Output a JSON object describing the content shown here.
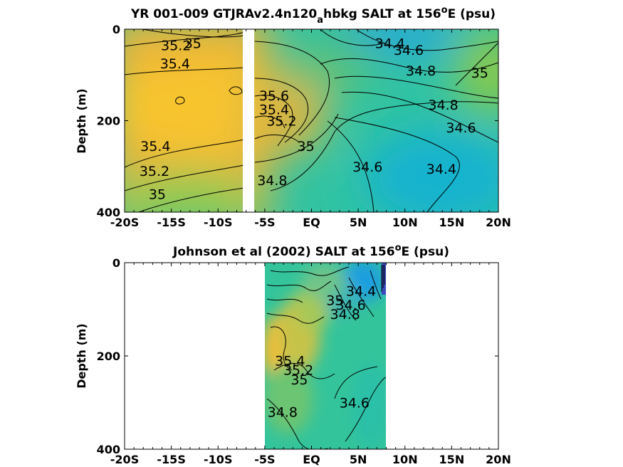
{
  "chart_data": [
    {
      "type": "contour",
      "title": "YR 001-009 GTJRAv2.4n120",
      "title_subscript": "a",
      "title_rest": "hbkg SALT at 156",
      "title_sup": "o",
      "title_end": "E (psu)",
      "ylabel": "Depth (m)",
      "xlim": [
        -20,
        20
      ],
      "ylim": [
        0,
        400
      ],
      "y_reversed": true,
      "x_ticks": [
        -20,
        -15,
        -10,
        -5,
        0,
        5,
        10,
        15,
        20
      ],
      "x_tick_labels": [
        "-20S",
        "-15S",
        "-10S",
        "-5S",
        "EQ",
        "5N",
        "10N",
        "15N",
        "20N"
      ],
      "y_ticks": [
        0,
        200,
        400
      ],
      "y_tick_labels": [
        "0",
        "200",
        "400"
      ],
      "missing_x_range": [
        -7.5,
        -6.5
      ],
      "contour_labels": [
        {
          "text": "35.2",
          "x": -14.5,
          "y": 35
        },
        {
          "text": "35",
          "x": -12.7,
          "y": 30
        },
        {
          "text": "35.4",
          "x": -14.6,
          "y": 75
        },
        {
          "text": "35.6",
          "x": -4.0,
          "y": 145
        },
        {
          "text": "35.4",
          "x": -4.0,
          "y": 175
        },
        {
          "text": "35.2",
          "x": -3.2,
          "y": 200
        },
        {
          "text": "35",
          "x": -0.6,
          "y": 255
        },
        {
          "text": "35.4",
          "x": -16.7,
          "y": 255
        },
        {
          "text": "35.2",
          "x": -16.8,
          "y": 310
        },
        {
          "text": "35",
          "x": -16.5,
          "y": 360
        },
        {
          "text": "34.8",
          "x": -4.2,
          "y": 330
        },
        {
          "text": "34.4",
          "x": 8.4,
          "y": 30
        },
        {
          "text": "34.6",
          "x": 10.4,
          "y": 45
        },
        {
          "text": "34.8",
          "x": 11.7,
          "y": 90
        },
        {
          "text": "35",
          "x": 18.0,
          "y": 95
        },
        {
          "text": "34.8",
          "x": 14.1,
          "y": 165
        },
        {
          "text": "34.6",
          "x": 16.0,
          "y": 215
        },
        {
          "text": "34.6",
          "x": 6.0,
          "y": 300
        },
        {
          "text": "34.4",
          "x": 13.9,
          "y": 305
        }
      ]
    },
    {
      "type": "contour",
      "title": "Johnson et al (2002) SALT at 156",
      "title_sup": "o",
      "title_end": "E (psu)",
      "ylabel": "Depth (m)",
      "xlim": [
        -20,
        20
      ],
      "ylim": [
        0,
        400
      ],
      "y_reversed": true,
      "x_ticks": [
        -20,
        -15,
        -10,
        -5,
        0,
        5,
        10,
        15,
        20
      ],
      "x_tick_labels": [
        "-20S",
        "-15S",
        "-10S",
        "-5S",
        "EQ",
        "5N",
        "10N",
        "15N",
        "20N"
      ],
      "y_ticks": [
        0,
        200,
        400
      ],
      "y_tick_labels": [
        "0",
        "200",
        "400"
      ],
      "data_x_range": [
        -5,
        8
      ],
      "contour_labels": [
        {
          "text": "34.4",
          "x": 5.3,
          "y": 60
        },
        {
          "text": "34.6",
          "x": 4.2,
          "y": 90
        },
        {
          "text": "34.8",
          "x": 3.6,
          "y": 110
        },
        {
          "text": "35",
          "x": 2.5,
          "y": 80
        },
        {
          "text": "35.4",
          "x": -2.3,
          "y": 210
        },
        {
          "text": "35.2",
          "x": -1.4,
          "y": 230
        },
        {
          "text": "35",
          "x": -1.3,
          "y": 250
        },
        {
          "text": "34.8",
          "x": -3.1,
          "y": 320
        },
        {
          "text": "34.6",
          "x": 4.6,
          "y": 300
        }
      ]
    }
  ]
}
